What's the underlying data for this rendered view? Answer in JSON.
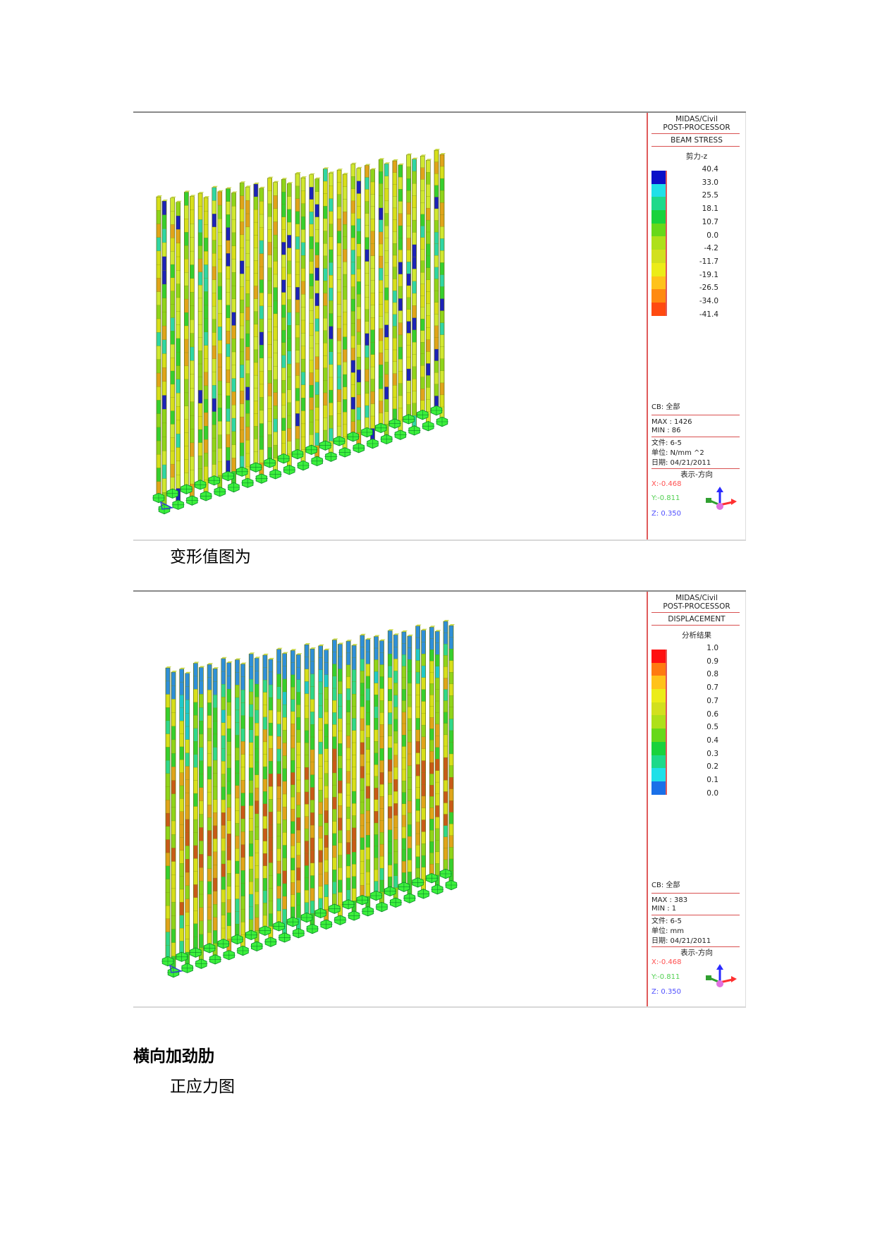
{
  "figure1": {
    "legend": {
      "program": "MIDAS/Civil",
      "module": "POST-PROCESSOR",
      "result_type": "BEAM STRESS",
      "component": "剪力-z",
      "scale_colors": [
        "#0b10c8",
        "#20e0e8",
        "#1ed98a",
        "#19d23c",
        "#67d81a",
        "#aee01a",
        "#d2e01e",
        "#ecec18",
        "#ffc21a",
        "#ff8a10",
        "#ff4a10"
      ],
      "scale_values": [
        "40.4",
        "33.0",
        "25.5",
        "18.1",
        "10.7",
        "0.0",
        "-4.2",
        "-11.7",
        "-19.1",
        "-26.5",
        "-34.0",
        "-41.4"
      ],
      "cb": "CB: 全部",
      "max": "MAX : 1426",
      "min": "MIN : 86",
      "file": "文件: 6-5",
      "unit": "单位: N/mm ^2",
      "date": "日期: 04/21/2011",
      "view_dir": "表示-方向",
      "x": "X:-0.468",
      "y": "Y:-0.811",
      "z": "Z: 0.350"
    }
  },
  "caption1": "变形值图为",
  "figure2": {
    "legend": {
      "program": "MIDAS/Civil",
      "module": "POST-PROCESSOR",
      "result_type": "DISPLACEMENT",
      "component": "分析结果",
      "scale_colors": [
        "#ff1010",
        "#ff7a10",
        "#ffc21a",
        "#ecec18",
        "#d2e01e",
        "#aee01a",
        "#67d81a",
        "#19d23c",
        "#1ed98a",
        "#20e0e8",
        "#1a70e8"
      ],
      "scale_values": [
        "1.0",
        "0.9",
        "0.8",
        "0.7",
        "0.7",
        "0.6",
        "0.5",
        "0.4",
        "0.3",
        "0.2",
        "0.1",
        "0.0"
      ],
      "cb": "CB: 全部",
      "max": "MAX : 383",
      "min": "MIN : 1",
      "file": "文件: 6-5",
      "unit": "单位: mm",
      "date": "日期: 04/21/2011",
      "view_dir": "表示-方向",
      "x": "X:-0.468",
      "y": "Y:-0.811",
      "z": "Z: 0.350"
    }
  },
  "section_heading": "横向加劲肋",
  "caption2": "正应力图",
  "colors": {
    "legend_rule": "#d95050",
    "x_axis": "#ff5050",
    "y_axis": "#50d050",
    "z_axis": "#5050ff"
  }
}
